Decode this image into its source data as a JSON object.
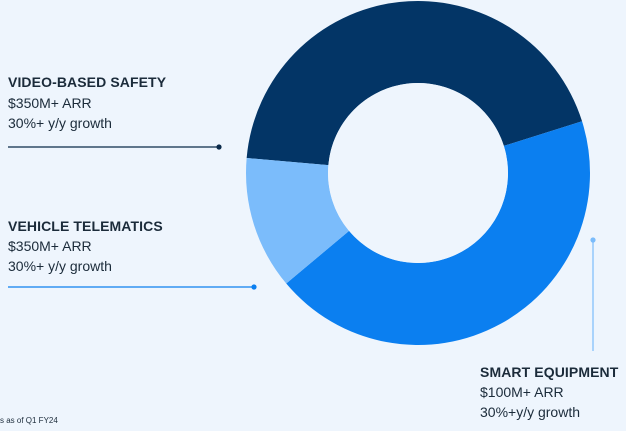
{
  "chart_data": {
    "type": "pie",
    "variant": "donut",
    "categories": [
      "Video-Based Safety",
      "Vehicle Telematics",
      "Smart Equipment"
    ],
    "values": [
      350,
      350,
      100
    ],
    "unit": "ARR ($M)",
    "colors": [
      "#033566",
      "#0b7ff0",
      "#7bbcfb"
    ],
    "labels": [
      {
        "title": "VIDEO-BASED SAFETY",
        "line1": "$350M+ ARR",
        "line2": "30%+ y/y growth"
      },
      {
        "title": "VEHICLE TELEMATICS",
        "line1": "$350M+  ARR",
        "line2": "30%+ y/y growth"
      },
      {
        "title": "SMART EQUIPMENT",
        "line1": "$100M+ ARR",
        "line2": "30%+y/y growth"
      }
    ]
  },
  "footnote": "s as of Q1 FY24"
}
